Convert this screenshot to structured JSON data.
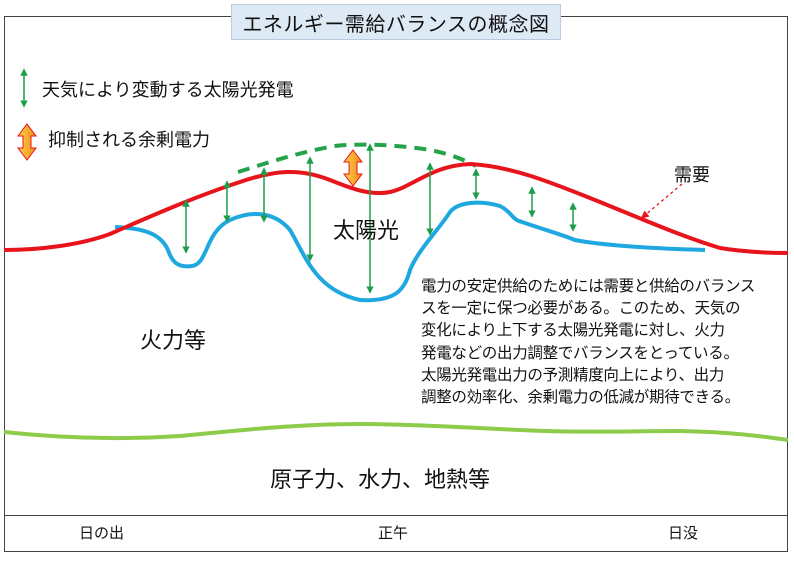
{
  "title": "エネルギー需給バランスの概念図",
  "legend": {
    "solar_variation": "天気により変動する太陽光発電",
    "surplus_suppressed": "抑制される余剰電力"
  },
  "labels": {
    "demand": "需要",
    "solar": "太陽光",
    "thermal": "火力等",
    "baseload": "原子力、水力、地熱等"
  },
  "explanation": [
    "電力の安定供給のためには需要と供給のバランス",
    "スを一定に保つ必要がある。このため、天気の",
    "変化により上下する太陽光発電に対し、火力",
    "発電などの出力調整でバランスをとっている。",
    "太陽光発電出力の予測精度向上により、出力",
    "調整の効率化、余剰電力の低減が期待できる。"
  ],
  "time_axis": {
    "sunrise": "日の出",
    "noon": "正午",
    "sunset": "日没"
  },
  "colors": {
    "demand": "#e8141b",
    "solar": "#1fa8e0",
    "baseload": "#8ccc4a",
    "suppressed": "#25a24a",
    "variation_arrow": "#1e9e4c",
    "surplus_arrow": "#f29a1f",
    "title_bg": "#dde9f5"
  }
}
